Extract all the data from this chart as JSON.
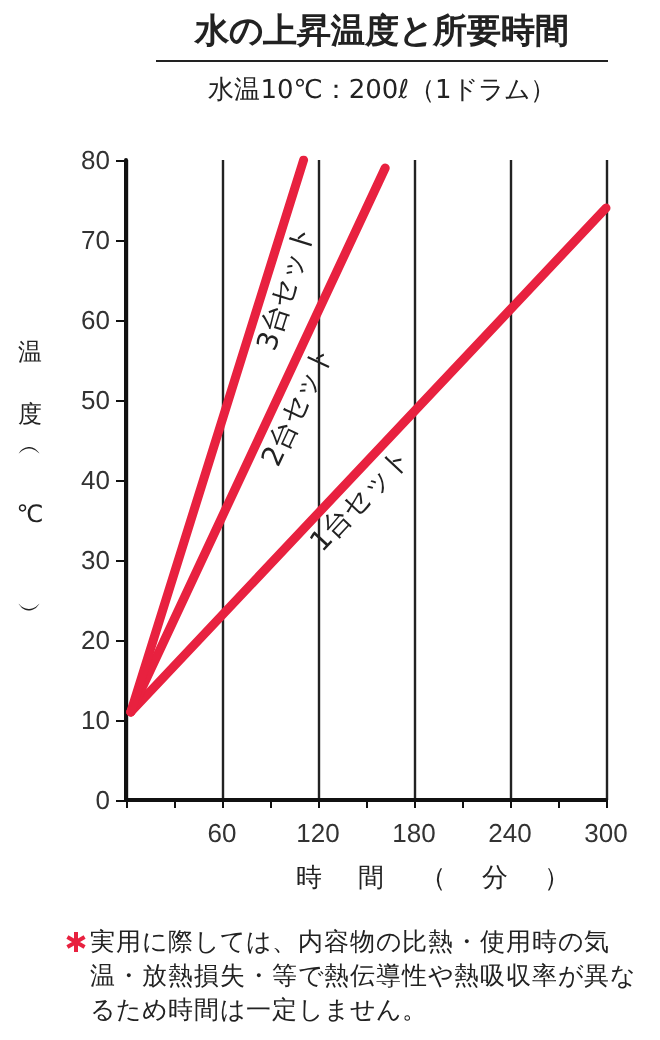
{
  "chart_data": {
    "type": "line",
    "title": "水の上昇温度と所要時間",
    "subtitle": "水温10℃：200ℓ（1ドラム）",
    "xlabel": "時間（分）",
    "ylabel": "温度（℃）",
    "annotations": [
      "実用に際しては、内容物の比熱・使用時の気温・放熱損失・等で熱伝導性や熱吸収率が異なるため時間は一定しません。"
    ],
    "series": [
      {
        "name": "1台セット",
        "color": "#e8213f",
        "x": [
          3,
          300
        ],
        "values": [
          11,
          74
        ]
      },
      {
        "name": "2台セット",
        "color": "#e8213f",
        "x": [
          3,
          162
        ],
        "values": [
          11,
          79
        ]
      },
      {
        "name": "3台セット",
        "color": "#e8213f",
        "x": [
          3,
          111
        ],
        "values": [
          11,
          80
        ]
      }
    ],
    "xlim": [
      0,
      300
    ],
    "xticks": [
      60,
      120,
      180,
      240,
      300
    ],
    "ylim": [
      0,
      80
    ],
    "yticks": [
      0,
      10,
      20,
      30,
      40,
      50,
      60,
      70,
      80
    ],
    "grid": "x",
    "legend": false,
    "marker": "none",
    "line_style": "solid"
  }
}
